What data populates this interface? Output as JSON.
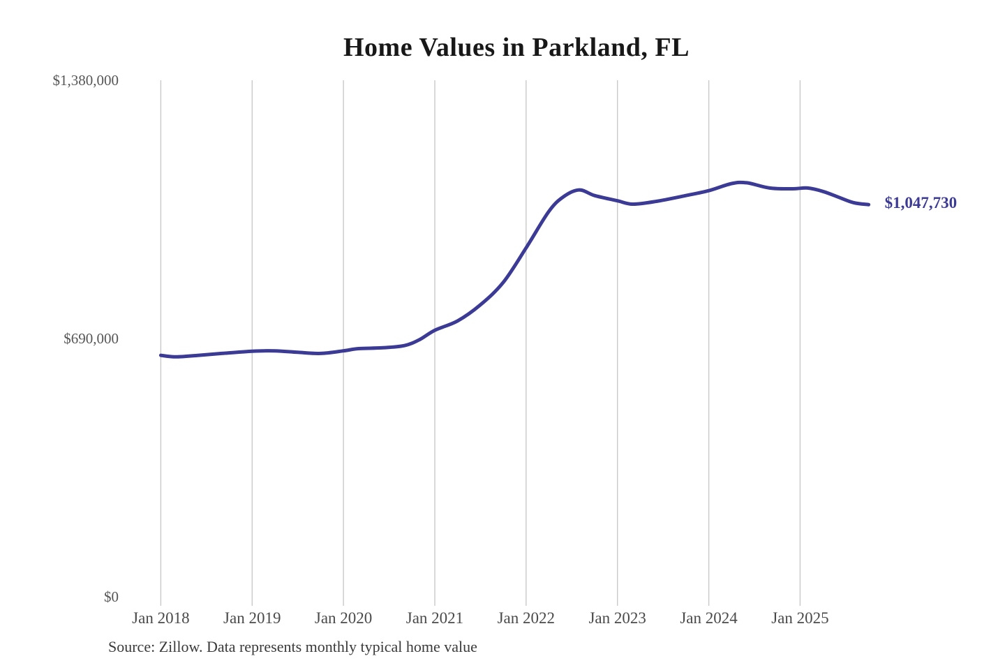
{
  "chart_data": {
    "type": "line",
    "title": "Home Values in Parkland, FL",
    "source_note": "Source: Zillow. Data represents monthly typical home value",
    "end_label": "$1,047,730",
    "end_value": 1047730,
    "legend": "none",
    "grid": "vertical-yearly",
    "ylim": [
      0,
      1380000
    ],
    "xlim": [
      "2018-01",
      "2025-10"
    ],
    "y_ticks": [
      {
        "label": "$1,380,000",
        "value": 1380000
      },
      {
        "label": "$690,000",
        "value": 690000
      },
      {
        "label": "$0",
        "value": 0
      }
    ],
    "x_ticks": [
      {
        "label": "Jan 2018",
        "month": "2018-01"
      },
      {
        "label": "Jan 2019",
        "month": "2019-01"
      },
      {
        "label": "Jan 2020",
        "month": "2020-01"
      },
      {
        "label": "Jan 2021",
        "month": "2021-01"
      },
      {
        "label": "Jan 2022",
        "month": "2022-01"
      },
      {
        "label": "Jan 2023",
        "month": "2023-01"
      },
      {
        "label": "Jan 2024",
        "month": "2024-01"
      },
      {
        "label": "Jan 2025",
        "month": "2025-01"
      }
    ],
    "series": [
      {
        "name": "Typical home value",
        "points": [
          [
            "2018-01",
            645000
          ],
          [
            "2018-03",
            641000
          ],
          [
            "2018-06",
            645000
          ],
          [
            "2018-09",
            650000
          ],
          [
            "2019-01",
            656000
          ],
          [
            "2019-04",
            657000
          ],
          [
            "2019-07",
            653000
          ],
          [
            "2019-10",
            650000
          ],
          [
            "2020-01",
            657000
          ],
          [
            "2020-03",
            663000
          ],
          [
            "2020-06",
            665000
          ],
          [
            "2020-09",
            671000
          ],
          [
            "2020-11",
            687000
          ],
          [
            "2021-01",
            712000
          ],
          [
            "2021-04",
            737000
          ],
          [
            "2021-07",
            780000
          ],
          [
            "2021-10",
            840000
          ],
          [
            "2022-01",
            932000
          ],
          [
            "2022-04",
            1030000
          ],
          [
            "2022-06",
            1070000
          ],
          [
            "2022-08",
            1087000
          ],
          [
            "2022-10",
            1072000
          ],
          [
            "2023-01",
            1058000
          ],
          [
            "2023-03",
            1049000
          ],
          [
            "2023-06",
            1056000
          ],
          [
            "2023-10",
            1072000
          ],
          [
            "2024-01",
            1085000
          ],
          [
            "2024-04",
            1104000
          ],
          [
            "2024-06",
            1106000
          ],
          [
            "2024-09",
            1092000
          ],
          [
            "2024-12",
            1090000
          ],
          [
            "2025-02",
            1092000
          ],
          [
            "2025-04",
            1083000
          ],
          [
            "2025-06",
            1068000
          ],
          [
            "2025-08",
            1053000
          ],
          [
            "2025-10",
            1047730
          ]
        ]
      }
    ],
    "colors": {
      "line": "#3b3a94",
      "end_label": "#3b3a94",
      "gridline": "#c9c9c9",
      "title": "#181818",
      "y_tick_text": "#565656",
      "x_tick_text": "#4a4a4a",
      "source_text": "#3a3a3a",
      "background": "#ffffff"
    }
  }
}
